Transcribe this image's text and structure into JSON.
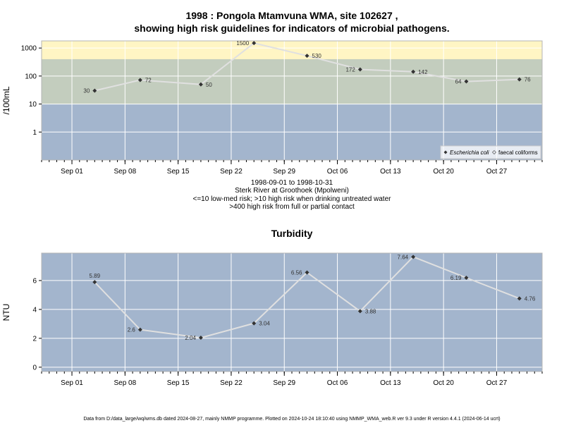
{
  "title_line1": "1998 : Pongola Mtamvuna WMA, site 102627 ,",
  "title_line2": "showing high risk guidelines for indicators of microbial pathogens.",
  "caption": [
    "1998-09-01 to 1998-10-31",
    "Sterk River at Groothoek (Mpolweni)",
    "<=10 low-med risk; >10 high risk when drinking untreated water",
    ">400 high risk from full or partial contact"
  ],
  "footer": "Data from D:/data_large/wq/wms.db dated 2024-08-27, mainly NMMP programme. Plotted on 2024-10-24 18:10:40 using NMMP_WMA_web.R ver 9.3 under R version 4.4.1 (2024-06-14 ucrt)",
  "colors": {
    "panel_bg": "#a3b5cd",
    "mid_band": "#c3cdbe",
    "high_band": "#fff5c4",
    "line": "#e0e0e0",
    "grid": "#ffffff",
    "point": "#333333"
  },
  "chart_data": [
    {
      "type": "line",
      "title": "",
      "xlabel": "",
      "ylabel": "/100mL",
      "yscale": "log",
      "ylim": [
        0.1,
        1800
      ],
      "yticks": [
        1,
        10,
        100,
        1000
      ],
      "ytick_labels": [
        "1",
        "10",
        "100",
        "1000"
      ],
      "xlim": [
        "1998-08-28",
        "1998-11-02"
      ],
      "xticks": [
        "1998-09-01",
        "1998-09-08",
        "1998-09-15",
        "1998-09-22",
        "1998-09-29",
        "1998-10-06",
        "1998-10-13",
        "1998-10-20",
        "1998-10-27"
      ],
      "xtick_labels": [
        "Sep 01",
        "Sep 08",
        "Sep 15",
        "Sep 22",
        "Sep 29",
        "Oct 06",
        "Oct 13",
        "Oct 20",
        "Oct 27"
      ],
      "bands": [
        {
          "from": 0.1,
          "to": 10,
          "color": "#a3b5cd"
        },
        {
          "from": 10,
          "to": 400,
          "color": "#c3cdbe"
        },
        {
          "from": 400,
          "to": 1800,
          "color": "#fff5c4"
        }
      ],
      "legend": {
        "placement": "bottom-right",
        "entries": [
          "Escherichia coli",
          "faecal coliforms"
        ]
      },
      "grid": true,
      "series": [
        {
          "name": "Escherichia coli",
          "x": [
            "1998-09-04",
            "1998-09-10",
            "1998-09-18",
            "1998-09-25",
            "1998-10-02",
            "1998-10-09",
            "1998-10-16",
            "1998-10-23",
            "1998-10-30"
          ],
          "y": [
            30,
            72,
            50,
            1500,
            530,
            172,
            142,
            64,
            76
          ],
          "labels": [
            "30",
            "72",
            "50",
            "1500",
            "530",
            "172",
            "142",
            "64",
            "76"
          ],
          "label_side": [
            "left",
            "right",
            "right",
            "left",
            "right",
            "left",
            "right",
            "left",
            "right"
          ]
        }
      ]
    },
    {
      "type": "line",
      "title": "Turbidity",
      "xlabel": "",
      "ylabel": "NTU",
      "ylim": [
        -0.3,
        7.9
      ],
      "yticks": [
        0,
        2,
        4,
        6
      ],
      "ytick_labels": [
        "0",
        "2",
        "4",
        "6"
      ],
      "xlim": [
        "1998-08-28",
        "1998-11-02"
      ],
      "xticks": [
        "1998-09-01",
        "1998-09-08",
        "1998-09-15",
        "1998-09-22",
        "1998-09-29",
        "1998-10-06",
        "1998-10-13",
        "1998-10-20",
        "1998-10-27"
      ],
      "xtick_labels": [
        "Sep 01",
        "Sep 08",
        "Sep 15",
        "Sep 22",
        "Sep 29",
        "Oct 06",
        "Oct 13",
        "Oct 20",
        "Oct 27"
      ],
      "grid": true,
      "series": [
        {
          "name": "",
          "x": [
            "1998-09-04",
            "1998-09-10",
            "1998-09-18",
            "1998-09-25",
            "1998-10-02",
            "1998-10-09",
            "1998-10-16",
            "1998-10-23",
            "1998-10-30"
          ],
          "y": [
            5.89,
            2.6,
            2.04,
            3.04,
            6.56,
            3.88,
            7.64,
            6.19,
            4.76
          ],
          "labels": [
            "5.89",
            "2.6",
            "2.04",
            "3.04",
            "6.56",
            "3.88",
            "7.64",
            "6.19",
            "4.76"
          ],
          "label_side": [
            "above",
            "left",
            "left",
            "right",
            "left",
            "right",
            "left",
            "left",
            "right"
          ]
        }
      ]
    }
  ]
}
